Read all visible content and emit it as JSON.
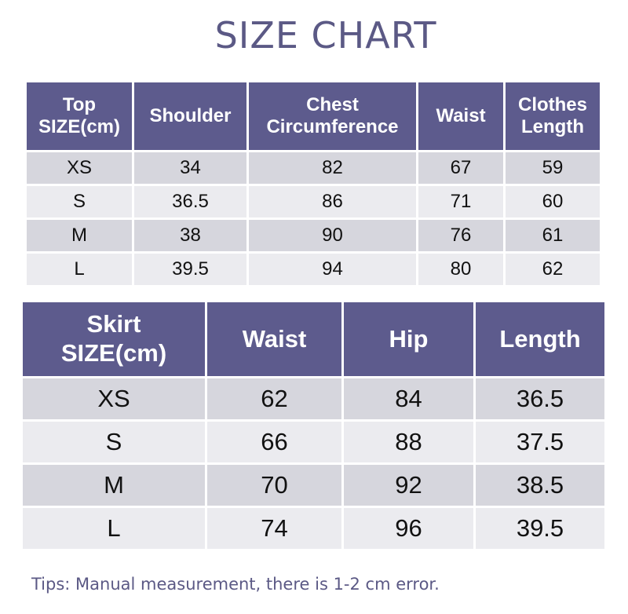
{
  "title": "SIZE CHART",
  "top_table": {
    "headers": [
      [
        "Top",
        "SIZE(cm)"
      ],
      [
        "Shoulder"
      ],
      [
        "Chest",
        "Circumference"
      ],
      [
        "Waist"
      ],
      [
        "Clothes",
        "Length"
      ]
    ],
    "rows": [
      [
        "XS",
        "34",
        "82",
        "67",
        "59"
      ],
      [
        "S",
        "36.5",
        "86",
        "71",
        "60"
      ],
      [
        "M",
        "38",
        "90",
        "76",
        "61"
      ],
      [
        "L",
        "39.5",
        "94",
        "80",
        "62"
      ]
    ]
  },
  "skirt_table": {
    "headers": [
      [
        "Skirt",
        "SIZE(cm)"
      ],
      [
        "Waist"
      ],
      [
        "Hip"
      ],
      [
        "Length"
      ]
    ],
    "rows": [
      [
        "XS",
        "62",
        "84",
        "36.5"
      ],
      [
        "S",
        "66",
        "88",
        "37.5"
      ],
      [
        "M",
        "70",
        "92",
        "38.5"
      ],
      [
        "L",
        "74",
        "96",
        "39.5"
      ]
    ]
  },
  "tips": "Tips: Manual measurement, there is 1-2 cm error."
}
